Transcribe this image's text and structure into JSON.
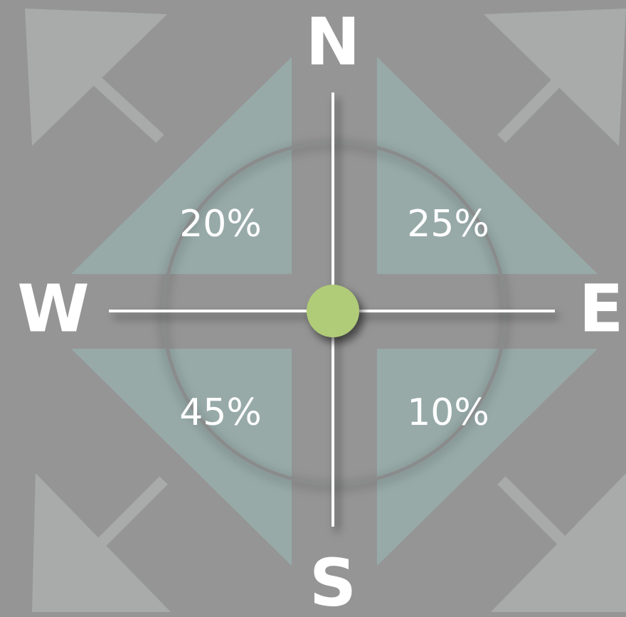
{
  "directions": {
    "north": "N",
    "south": "S",
    "west": "W",
    "east": "E"
  },
  "quadrants": {
    "north_west": "20%",
    "north_east": "25%",
    "south_west": "45%",
    "south_east": "10%"
  }
}
